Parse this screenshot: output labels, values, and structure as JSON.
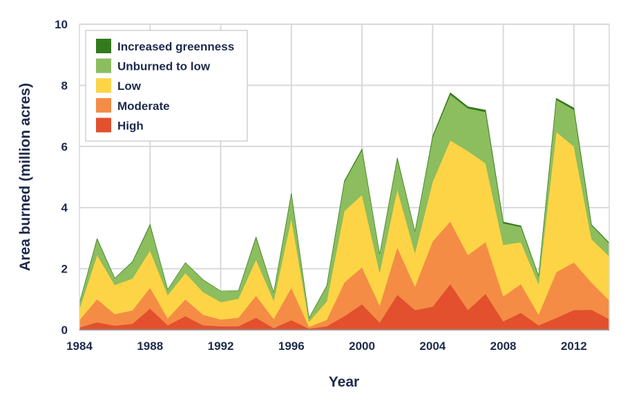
{
  "chart_data": {
    "type": "area",
    "stacked": true,
    "title": "",
    "xlabel": "Year",
    "ylabel": "Area burned (million acres)",
    "xlim": [
      1984,
      2014
    ],
    "ylim": [
      0,
      10
    ],
    "x_ticks": [
      1984,
      1988,
      1992,
      1996,
      2000,
      2004,
      2008,
      2012
    ],
    "y_ticks": [
      0,
      2,
      4,
      6,
      8,
      10
    ],
    "grid": true,
    "legend_position": "top-left",
    "x": [
      1984,
      1985,
      1986,
      1987,
      1988,
      1989,
      1990,
      1991,
      1992,
      1993,
      1994,
      1995,
      1996,
      1997,
      1998,
      1999,
      2000,
      2001,
      2002,
      2003,
      2004,
      2005,
      2006,
      2007,
      2008,
      2009,
      2010,
      2011,
      2012,
      2013,
      2014
    ],
    "series": [
      {
        "name": "High",
        "color": "#e2502e",
        "values": [
          0.08,
          0.25,
          0.14,
          0.2,
          0.7,
          0.15,
          0.45,
          0.15,
          0.12,
          0.12,
          0.4,
          0.06,
          0.32,
          0.04,
          0.12,
          0.45,
          0.84,
          0.24,
          1.15,
          0.65,
          0.76,
          1.5,
          0.65,
          1.18,
          0.28,
          0.56,
          0.15,
          0.39,
          0.65,
          0.66,
          0.35
        ]
      },
      {
        "name": "Moderate",
        "color": "#f48c45",
        "values": [
          0.24,
          0.76,
          0.38,
          0.44,
          0.68,
          0.23,
          0.55,
          0.35,
          0.22,
          0.28,
          0.72,
          0.3,
          1.06,
          0.06,
          0.21,
          1.1,
          1.21,
          0.56,
          1.55,
          0.77,
          2.14,
          2.05,
          1.8,
          1.7,
          0.82,
          0.94,
          0.35,
          1.5,
          1.56,
          0.89,
          0.62
        ]
      },
      {
        "name": "Low",
        "color": "#fdd446",
        "values": [
          0.36,
          1.44,
          0.95,
          1.04,
          1.22,
          0.76,
          0.86,
          0.74,
          0.57,
          0.62,
          1.18,
          0.6,
          2.27,
          0.17,
          0.6,
          2.34,
          2.37,
          1.08,
          1.9,
          1.1,
          1.95,
          2.65,
          3.4,
          2.57,
          1.68,
          1.37,
          1.0,
          4.59,
          3.79,
          1.42,
          1.44
        ]
      },
      {
        "name": "Unburned to low",
        "color": "#8cbd5e",
        "values": [
          0.2,
          0.52,
          0.22,
          0.54,
          0.83,
          0.18,
          0.34,
          0.4,
          0.36,
          0.26,
          0.72,
          0.26,
          0.8,
          0.12,
          0.5,
          0.95,
          1.47,
          0.6,
          1.0,
          0.7,
          1.45,
          1.5,
          1.4,
          1.68,
          0.71,
          0.5,
          0.26,
          1.05,
          1.2,
          0.45,
          0.42
        ]
      },
      {
        "name": "Increased greenness",
        "color": "#337a1c",
        "values": [
          0.0,
          0.02,
          0.0,
          0.01,
          0.02,
          0.0,
          0.0,
          0.0,
          0.0,
          0.0,
          0.02,
          0.0,
          0.02,
          0.0,
          0.01,
          0.03,
          0.03,
          0.0,
          0.03,
          0.0,
          0.04,
          0.06,
          0.05,
          0.06,
          0.04,
          0.03,
          0.01,
          0.05,
          0.06,
          0.02,
          0.02
        ]
      }
    ],
    "legend_order": [
      "Increased greenness",
      "Unburned to low",
      "Low",
      "Moderate",
      "High"
    ]
  }
}
